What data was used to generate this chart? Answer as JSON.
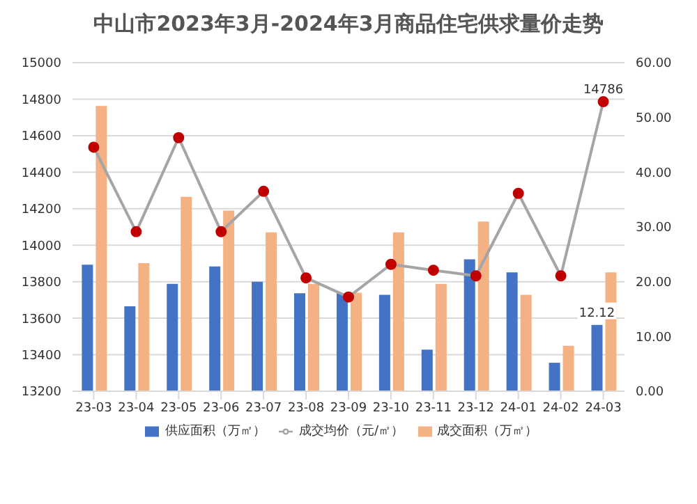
{
  "chart_data": {
    "type": "bar",
    "title": "中山市2023年3月-2024年3月商品住宅供求量价走势",
    "categories": [
      "23-03",
      "23-04",
      "23-05",
      "23-06",
      "23-07",
      "23-08",
      "23-09",
      "23-10",
      "23-11",
      "23-12",
      "24-01",
      "24-02",
      "24-03"
    ],
    "series": [
      {
        "name": "供应面积（万㎡）",
        "axis": "y2",
        "color": "#4472c4",
        "values": [
          23.1,
          15.5,
          19.6,
          22.8,
          20.0,
          17.9,
          17.9,
          17.6,
          7.6,
          24.1,
          21.7,
          5.2,
          12.12
        ],
        "value_labels": [
          null,
          null,
          null,
          null,
          null,
          null,
          null,
          null,
          null,
          null,
          null,
          null,
          "12.12"
        ]
      },
      {
        "name": "成交面积（万㎡）",
        "axis": "y2",
        "color": "#f4b183",
        "values": [
          52.1,
          23.4,
          35.5,
          33,
          29,
          19.6,
          18,
          29,
          19.6,
          31,
          17.6,
          8.3,
          21.7
        ]
      },
      {
        "name": "成交均价（元/㎡）",
        "type": "line",
        "color": "#a5a5a5",
        "marker": "circle",
        "values": [
          14537,
          14074,
          14589,
          14074,
          14295,
          13821,
          13716,
          13895,
          13863,
          13832,
          14284,
          13832,
          14786
        ],
        "value_labels": [
          null,
          null,
          null,
          null,
          null,
          null,
          null,
          null,
          null,
          null,
          null,
          null,
          "14786"
        ]
      }
    ],
    "ylim": [
      13200,
      15000
    ],
    "yticks": [
      13200,
      13400,
      13600,
      13800,
      14000,
      14200,
      14400,
      14600,
      14800,
      15000
    ],
    "y2lim": [
      0,
      60
    ],
    "y2ticks": [
      {
        "value": 0,
        "label": "0.00"
      },
      {
        "value": 10,
        "label": "10.00"
      },
      {
        "value": 20,
        "label": "20.00"
      },
      {
        "value": 30,
        "label": "30.00"
      },
      {
        "value": 40,
        "label": "40.00"
      },
      {
        "value": 50,
        "label": "50.00"
      },
      {
        "value": 60,
        "label": "60.00"
      }
    ],
    "grid": "y",
    "legend": "bottom"
  }
}
